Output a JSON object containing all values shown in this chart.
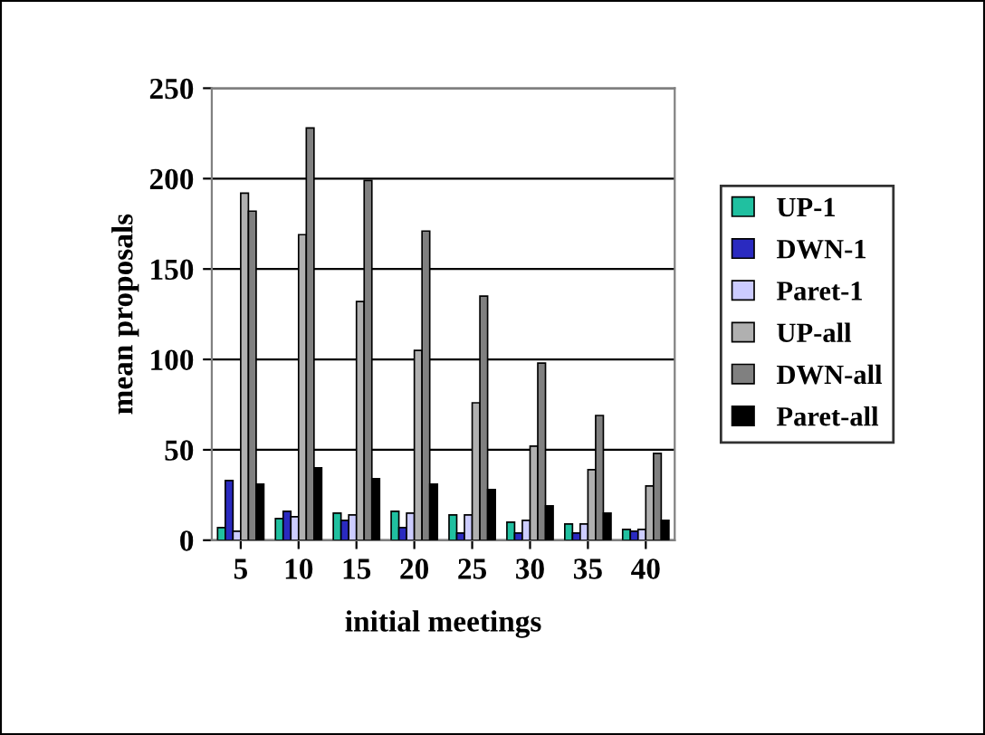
{
  "chart_data": {
    "type": "bar",
    "xlabel": "initial meetings",
    "ylabel": "mean proposals",
    "categories": [
      "5",
      "10",
      "15",
      "20",
      "25",
      "30",
      "35",
      "40"
    ],
    "series": [
      {
        "name": "UP-1",
        "color": "#20c0a0",
        "values": [
          7,
          12,
          15,
          16,
          14,
          10,
          9,
          6
        ]
      },
      {
        "name": "DWN-1",
        "color": "#2a2ac0",
        "values": [
          33,
          16,
          11,
          7,
          4,
          4,
          4,
          5
        ]
      },
      {
        "name": "Paret-1",
        "color": "#ccccff",
        "values": [
          5,
          13,
          14,
          15,
          14,
          11,
          9,
          6
        ]
      },
      {
        "name": "UP-all",
        "color": "#b0b0b0",
        "values": [
          192,
          169,
          132,
          105,
          76,
          52,
          39,
          30
        ]
      },
      {
        "name": "DWN-all",
        "color": "#808080",
        "values": [
          182,
          228,
          199,
          171,
          135,
          98,
          69,
          48
        ]
      },
      {
        "name": "Paret-all",
        "color": "#000000",
        "values": [
          31,
          40,
          34,
          31,
          28,
          19,
          15,
          11
        ]
      }
    ],
    "ylim": [
      0,
      250
    ],
    "yticks": [
      0,
      50,
      100,
      150,
      200,
      250
    ],
    "grid": "y",
    "legend": "right"
  }
}
